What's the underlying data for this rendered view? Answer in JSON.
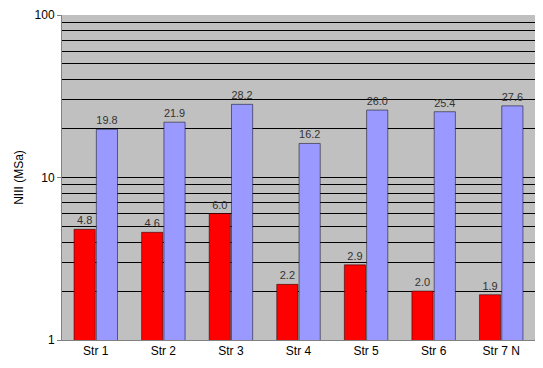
{
  "chart_data": {
    "type": "bar",
    "y_label": "NIII (MSa)",
    "categories": [
      "Str 1",
      "Str 2",
      "Str 3",
      "Str 4",
      "Str 5",
      "Str 6",
      "Str 7 N"
    ],
    "series": [
      {
        "color": "#ff0000",
        "values": [
          4.8,
          4.6,
          6.0,
          2.2,
          2.9,
          2.0,
          1.9
        ],
        "value_labels": [
          "4.8",
          "4.6",
          "6.0",
          "2.2",
          "2.9",
          "2.0",
          "1.9"
        ]
      },
      {
        "color": "#9999ff",
        "values": [
          19.8,
          21.9,
          28.2,
          16.2,
          26.0,
          25.4,
          27.6
        ],
        "value_labels": [
          "19.8",
          "21.9",
          "28.2",
          "16.2",
          "26.0",
          "25.4",
          "27.6"
        ]
      }
    ],
    "ylim": [
      1,
      100
    ],
    "yticks": [
      1,
      10,
      100
    ],
    "log": "y",
    "grid": true,
    "data_labels": true
  }
}
